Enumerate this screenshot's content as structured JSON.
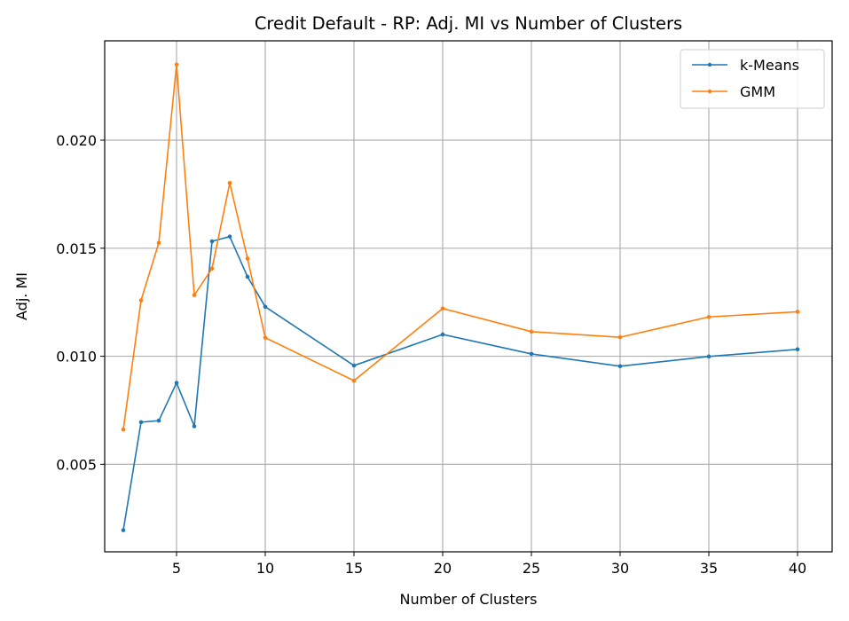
{
  "chart_data": {
    "type": "line",
    "title": "Credit Default - RP: Adj. MI vs Number of Clusters",
    "xlabel": "Number of Clusters",
    "ylabel": "Adj. MI",
    "xlim": [
      0.95,
      41.95
    ],
    "ylim": [
      0.00095,
      0.0246
    ],
    "xticks": [
      5,
      10,
      15,
      20,
      25,
      30,
      35,
      40
    ],
    "yticks": [
      0.005,
      0.01,
      0.015,
      0.02
    ],
    "ytick_labels": [
      "0.005",
      "0.010",
      "0.015",
      "0.020"
    ],
    "grid": true,
    "legend_position": "top-right",
    "x": [
      2,
      3,
      4,
      5,
      6,
      7,
      8,
      9,
      10,
      15,
      20,
      25,
      30,
      35,
      40
    ],
    "series": [
      {
        "name": "k-Means",
        "color": "#1f77b4",
        "values": [
          0.00195,
          0.00695,
          0.00702,
          0.00877,
          0.00676,
          0.01532,
          0.01554,
          0.01368,
          0.01229,
          0.00957,
          0.01101,
          0.01011,
          0.00954,
          0.00999,
          0.01032
        ]
      },
      {
        "name": "GMM",
        "color": "#ff7f0e",
        "values": [
          0.00661,
          0.01259,
          0.01525,
          0.0235,
          0.01283,
          0.01406,
          0.01802,
          0.01452,
          0.01086,
          0.00887,
          0.01221,
          0.01114,
          0.01088,
          0.01182,
          0.01206
        ]
      }
    ]
  }
}
